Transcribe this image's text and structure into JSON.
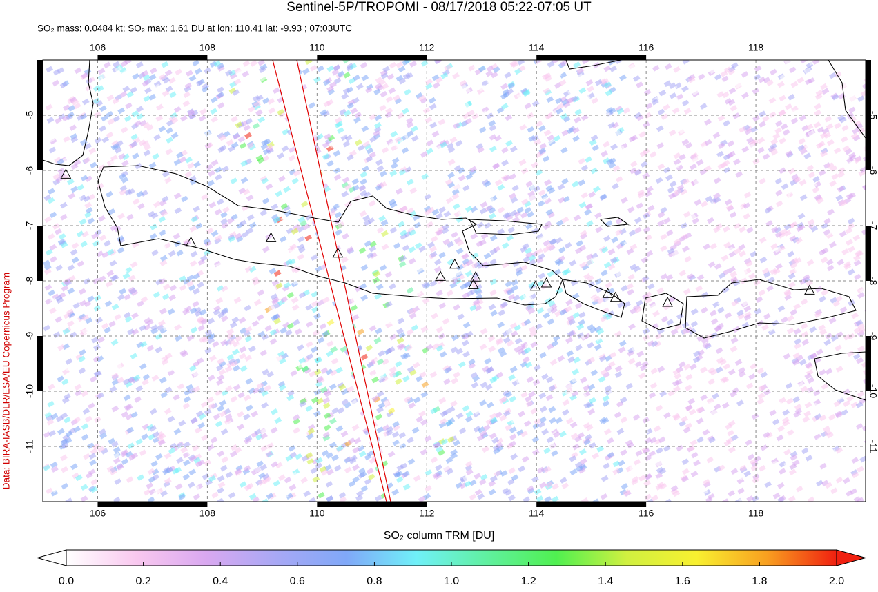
{
  "chart_data": {
    "type": "map",
    "title": "Sentinel-5P/TROPOMI - 08/17/2018 05:22-07:05 UT",
    "subtitle": "SO₂ mass: 0.0484 kt; SO₂ max: 1.61 DU at lon: 110.41 lat: -9.93 ; 07:03UTC",
    "credit": "Data: BIRA-IASB/DLR/ESA/EU Copernicus Program",
    "xlim": [
      105,
      120
    ],
    "xticks": [
      106,
      108,
      110,
      112,
      114,
      116,
      118
    ],
    "ylim": [
      -4,
      -12
    ],
    "yticks": [
      -5,
      -6,
      -7,
      -8,
      -9,
      -10,
      -11
    ],
    "grid": true,
    "volcanoes": [
      [
        105.42,
        -6.08
      ],
      [
        107.7,
        -7.31
      ],
      [
        109.16,
        -7.23
      ],
      [
        110.38,
        -7.51
      ],
      [
        112.25,
        -7.93
      ],
      [
        112.51,
        -7.71
      ],
      [
        112.89,
        -7.94
      ],
      [
        112.85,
        -8.08
      ],
      [
        113.98,
        -8.11
      ],
      [
        114.18,
        -8.05
      ],
      [
        115.3,
        -8.24
      ],
      [
        115.44,
        -8.31
      ],
      [
        116.39,
        -8.4
      ],
      [
        118.98,
        -8.18
      ]
    ],
    "colorbar": {
      "label": "SO₂ column TRM [DU]",
      "lim": [
        0,
        2
      ],
      "colors": [
        "#ffffff",
        "#f9c8ef",
        "#d9a8f0",
        "#a8a8f5",
        "#80a8f8",
        "#70f0f8",
        "#60f0a0",
        "#50f050",
        "#d0f040",
        "#f8f030",
        "#f8a020",
        "#f02010"
      ],
      "ticks": [
        {
          "value": 0,
          "label": "0.0"
        },
        {
          "value": 0.2,
          "label": "0.2"
        },
        {
          "value": 0.4,
          "label": "0.4"
        },
        {
          "value": 0.6,
          "label": "0.6"
        },
        {
          "value": 0.8,
          "label": "0.8"
        },
        {
          "value": 1,
          "label": "1.0"
        },
        {
          "value": 1.2,
          "label": "1.2"
        },
        {
          "value": 1.4,
          "label": "1.4"
        },
        {
          "value": 1.6,
          "label": "1.6"
        },
        {
          "value": 1.8,
          "label": "1.8"
        },
        {
          "value": 2,
          "label": "2.0"
        }
      ]
    }
  }
}
